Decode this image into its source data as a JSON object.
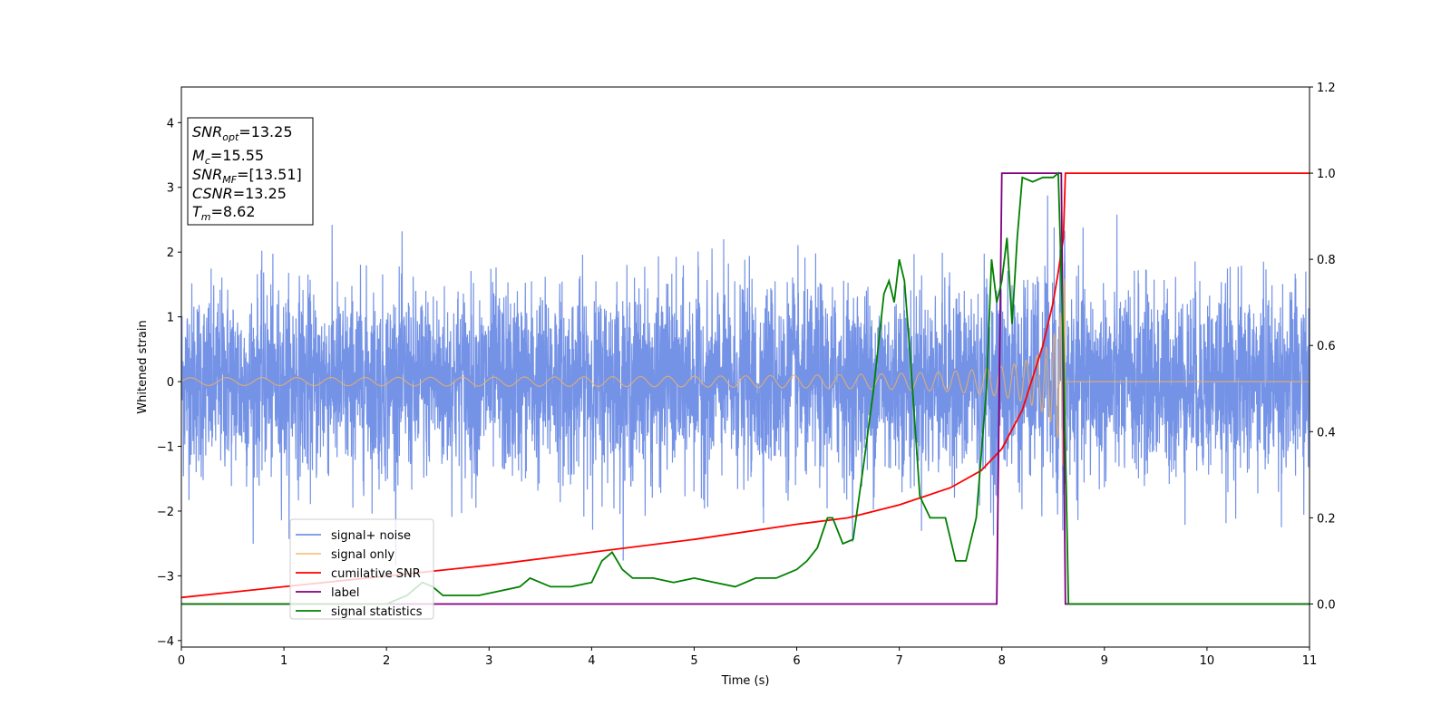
{
  "chart_data": {
    "type": "line",
    "xlabel": "Time (s)",
    "ylabel": "Whitened strain",
    "xlim": [
      0,
      11
    ],
    "ylim_left": [
      -4.1,
      4.55
    ],
    "ylim_right": [
      -0.1,
      1.2
    ],
    "x_ticks": [
      "0",
      "1",
      "2",
      "3",
      "4",
      "5",
      "6",
      "7",
      "8",
      "9",
      "10",
      "11"
    ],
    "y_ticks_left": [
      "−4",
      "−3",
      "−2",
      "−1",
      "0",
      "1",
      "2",
      "3",
      "4"
    ],
    "y_ticks_right": [
      "0.0",
      "0.2",
      "0.4",
      "0.6",
      "0.8",
      "1.0",
      "1.2"
    ],
    "grid": false,
    "legend_position": "lower-left",
    "info_box": {
      "snr_opt": {
        "sym": "SNR",
        "sub": "opt",
        "value": "=13.25"
      },
      "mc": {
        "sym": "M",
        "sub": "c",
        "value": "=15.55"
      },
      "snr_mf": {
        "sym": "SNR",
        "sub": "MF",
        "value": "=[13.51]"
      },
      "csnr": {
        "sym": "CSNR",
        "value": "=13.25"
      },
      "tm": {
        "sym": "T",
        "sub": "m",
        "value": "=8.62"
      }
    },
    "series": [
      {
        "name": "signal+ noise",
        "axis": "left",
        "color": "#7492e6",
        "description_values": {
          "noise_std": 0.72,
          "x_range": [
            0,
            11
          ]
        }
      },
      {
        "name": "signal only",
        "axis": "left",
        "color": "#f5b35a",
        "chirp": {
          "t_merge": 8.62,
          "start_amplitude": 0.04,
          "peak_amplitude": 1.8,
          "start_freq_hz": 4.5,
          "end_freq_hz": 60
        }
      },
      {
        "name": "cumilative SNR",
        "axis": "right",
        "color": "#ff0000",
        "x": [
          0,
          1,
          2,
          3,
          4,
          5,
          6,
          6.5,
          7,
          7.5,
          7.8,
          8.0,
          8.2,
          8.4,
          8.5,
          8.55,
          8.6,
          8.62,
          9,
          10,
          11
        ],
        "y": [
          0.015,
          0.04,
          0.065,
          0.09,
          0.12,
          0.15,
          0.185,
          0.2,
          0.23,
          0.27,
          0.31,
          0.36,
          0.45,
          0.6,
          0.7,
          0.77,
          0.85,
          1.0,
          1.0,
          1.0,
          1.0
        ]
      },
      {
        "name": "label",
        "axis": "right",
        "color": "#800080",
        "x": [
          0,
          7.95,
          8.0,
          8.58,
          8.62,
          11
        ],
        "y": [
          0.0,
          0.0,
          1.0,
          1.0,
          0.0,
          0.0
        ]
      },
      {
        "name": "signal statistics",
        "axis": "right",
        "color": "#008000",
        "x": [
          0,
          0.5,
          1,
          1.5,
          2,
          2.2,
          2.35,
          2.45,
          2.55,
          2.7,
          2.9,
          3.1,
          3.3,
          3.4,
          3.5,
          3.6,
          3.8,
          4.0,
          4.1,
          4.2,
          4.3,
          4.4,
          4.6,
          4.8,
          5.0,
          5.2,
          5.4,
          5.6,
          5.8,
          6.0,
          6.1,
          6.2,
          6.3,
          6.35,
          6.45,
          6.55,
          6.65,
          6.75,
          6.85,
          6.9,
          6.95,
          7.0,
          7.05,
          7.1,
          7.2,
          7.3,
          7.35,
          7.45,
          7.55,
          7.65,
          7.75,
          7.85,
          7.9,
          7.95,
          8.0,
          8.05,
          8.1,
          8.15,
          8.2,
          8.3,
          8.4,
          8.5,
          8.55,
          8.6,
          8.65,
          8.7,
          9,
          10,
          11
        ],
        "y": [
          0.0,
          0.0,
          0.0,
          0.0,
          0.0,
          0.02,
          0.05,
          0.04,
          0.02,
          0.02,
          0.02,
          0.03,
          0.04,
          0.06,
          0.05,
          0.04,
          0.04,
          0.05,
          0.1,
          0.12,
          0.08,
          0.06,
          0.06,
          0.05,
          0.06,
          0.05,
          0.04,
          0.06,
          0.06,
          0.08,
          0.1,
          0.13,
          0.2,
          0.2,
          0.14,
          0.15,
          0.32,
          0.5,
          0.72,
          0.75,
          0.7,
          0.8,
          0.75,
          0.6,
          0.25,
          0.2,
          0.2,
          0.2,
          0.1,
          0.1,
          0.2,
          0.5,
          0.8,
          0.7,
          0.75,
          0.85,
          0.65,
          0.85,
          0.99,
          0.98,
          0.99,
          0.99,
          1.0,
          0.6,
          0.0,
          0.0,
          0.0,
          0.0,
          0.0
        ]
      }
    ]
  }
}
